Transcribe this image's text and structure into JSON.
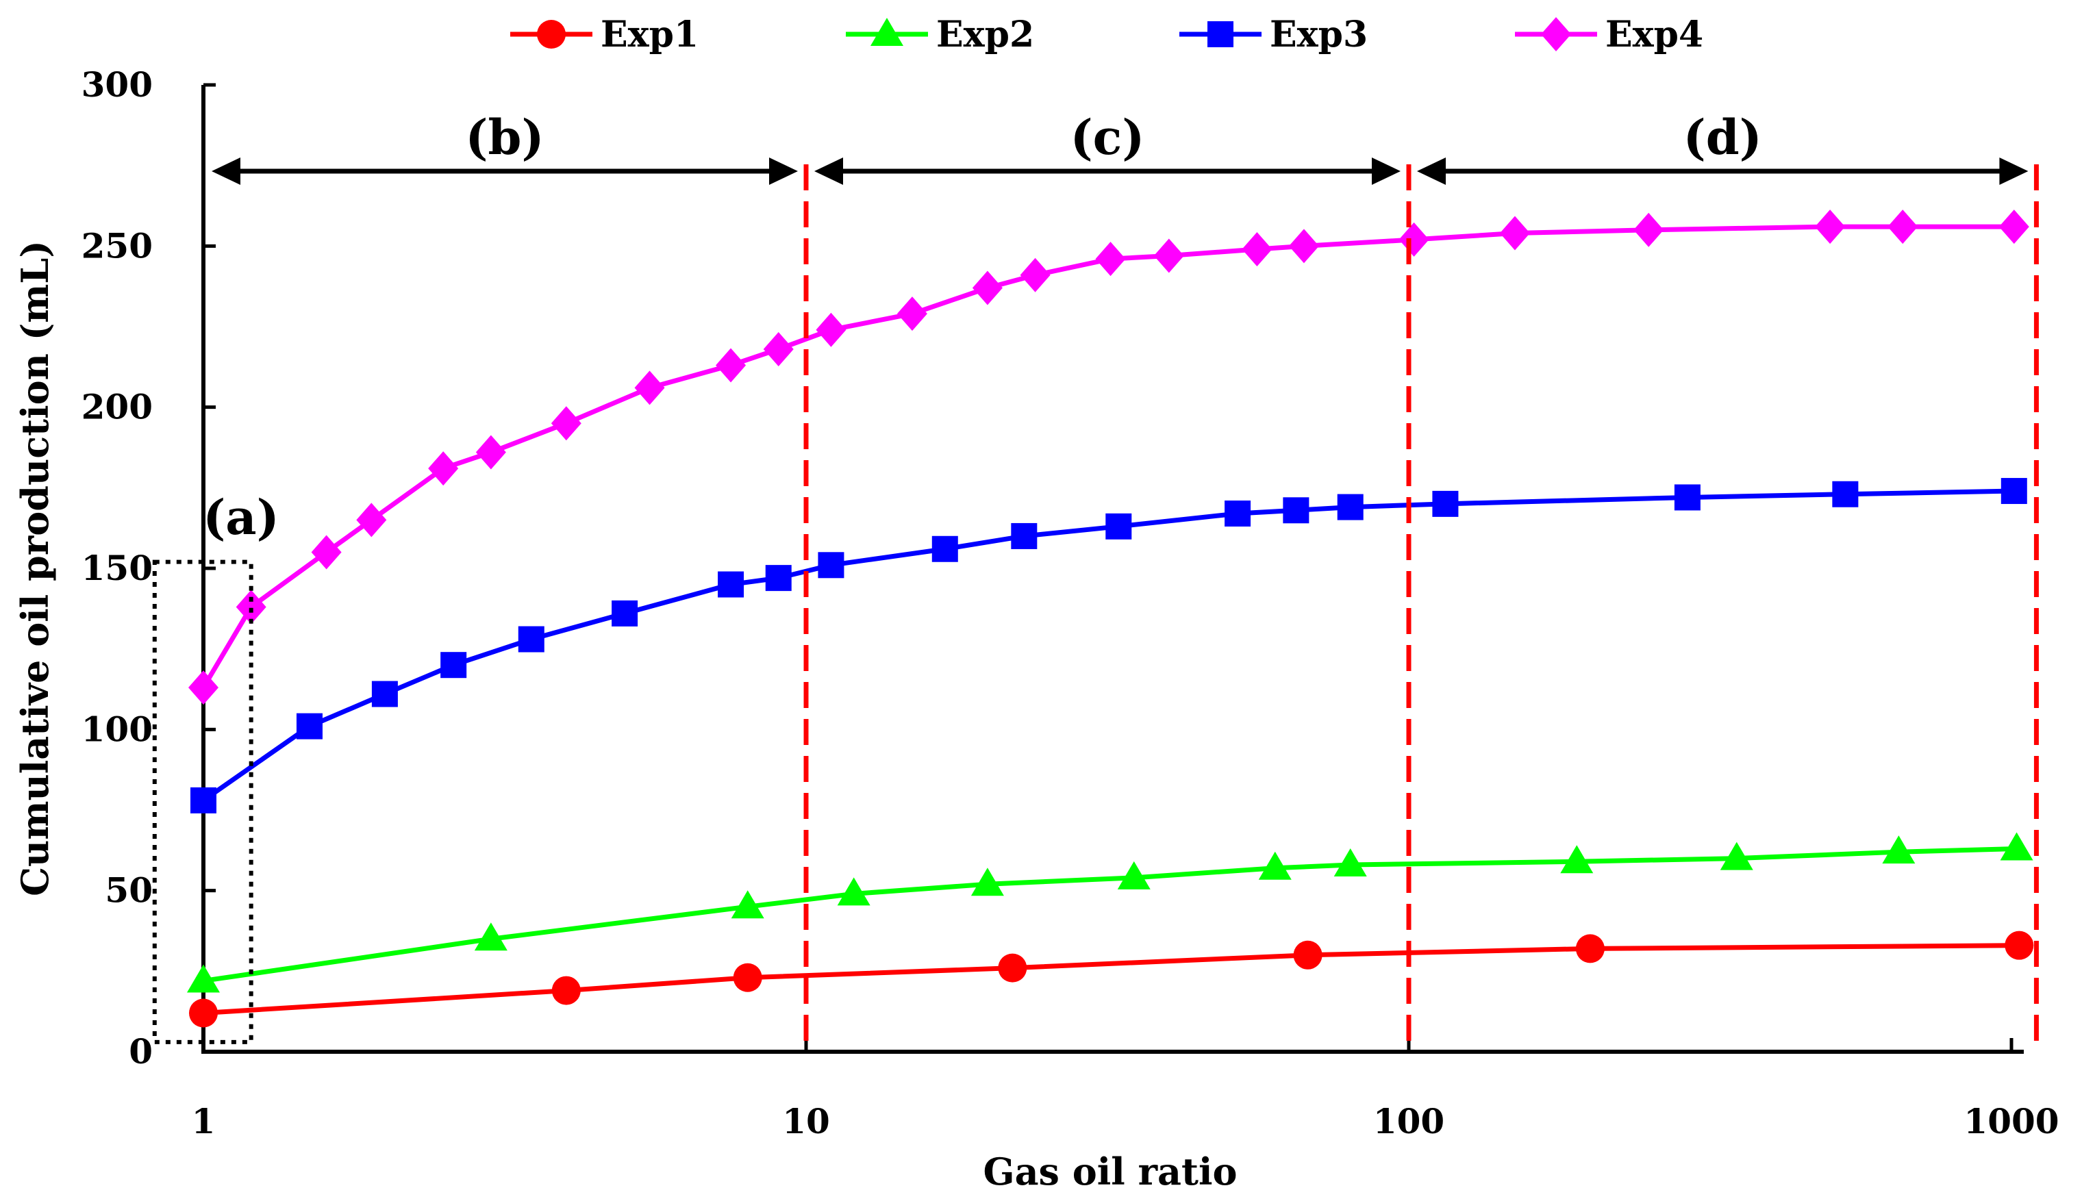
{
  "chart_data": {
    "type": "line",
    "xscale": "log",
    "xlabel": "Gas oil ratio",
    "ylabel": "Cumulative oil production (mL)",
    "xlim": [
      1,
      1000
    ],
    "ylim": [
      0,
      300
    ],
    "xticks": [
      1,
      10,
      100,
      1000
    ],
    "xtick_labels": [
      "1",
      "10",
      "100",
      "1000"
    ],
    "yticks": [
      0,
      50,
      100,
      150,
      200,
      250,
      300
    ],
    "ytick_labels": [
      "0",
      "50",
      "100",
      "150",
      "200",
      "250",
      "300"
    ],
    "legend_position": "top",
    "series": [
      {
        "name": "Exp1",
        "color": "#ff0000",
        "marker": "circle",
        "x": [
          1,
          4,
          8,
          22,
          68,
          200,
          1030
        ],
        "y": [
          12,
          19,
          23,
          26,
          30,
          32,
          33
        ]
      },
      {
        "name": "Exp2",
        "color": "#00ff00",
        "marker": "triangle",
        "x": [
          1,
          3,
          8,
          12,
          20,
          35,
          60,
          80,
          190,
          350,
          650,
          1020
        ],
        "y": [
          22,
          35,
          45,
          49,
          52,
          54,
          57,
          58,
          59,
          60,
          62,
          63
        ]
      },
      {
        "name": "Exp3",
        "color": "#0000ff",
        "marker": "square",
        "x": [
          1,
          1.5,
          2,
          2.6,
          3.5,
          5,
          7.5,
          9,
          11,
          17,
          23,
          33,
          52,
          65,
          80,
          115,
          290,
          530,
          1010
        ],
        "y": [
          78,
          101,
          111,
          120,
          128,
          136,
          145,
          147,
          151,
          156,
          160,
          163,
          167,
          168,
          169,
          170,
          172,
          173,
          174
        ]
      },
      {
        "name": "Exp4",
        "color": "#ff00ff",
        "marker": "diamond",
        "x": [
          1,
          1.2,
          1.6,
          1.9,
          2.5,
          3,
          4,
          5.5,
          7.5,
          9,
          11,
          15,
          20,
          24,
          32,
          40,
          56,
          67,
          102,
          150,
          250,
          500,
          660,
          1010
        ],
        "y": [
          113,
          138,
          155,
          165,
          181,
          186,
          195,
          206,
          213,
          218,
          224,
          229,
          237,
          241,
          246,
          247,
          249,
          250,
          252,
          254,
          255,
          256,
          256,
          256
        ]
      }
    ],
    "vertical_lines": {
      "x": [
        10,
        100,
        1100
      ],
      "color": "#ff0000",
      "style": "dashed"
    },
    "regions": [
      {
        "label": "(b)",
        "from": 1,
        "to": 10
      },
      {
        "label": "(c)",
        "from": 10,
        "to": 100
      },
      {
        "label": "(d)",
        "from": 100,
        "to": 1100
      }
    ],
    "highlight_box": {
      "label": "(a)",
      "x_from": 0.83,
      "x_to": 1.2,
      "y_from": 3,
      "y_to": 152
    }
  }
}
